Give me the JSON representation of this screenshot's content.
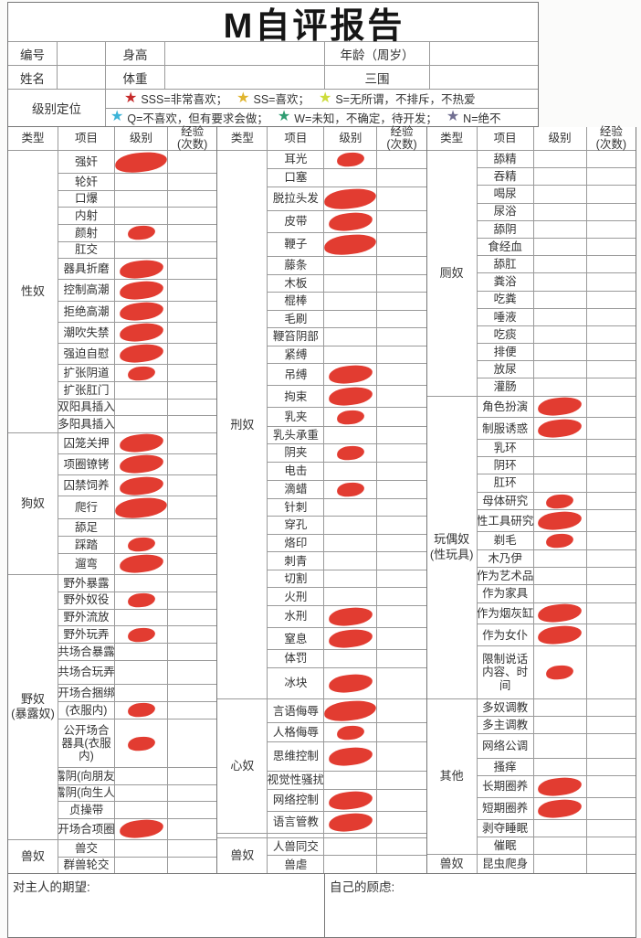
{
  "title": "M自评报告",
  "header": {
    "info_rows": [
      [
        "编号",
        "",
        "身高",
        "",
        "年龄（周岁）",
        ""
      ],
      [
        "姓名",
        "",
        "体重",
        "",
        "三围",
        ""
      ]
    ],
    "level_label": "级别定位",
    "legend_rows": [
      [
        {
          "star": "#c62b2b",
          "label": "SSS=非常喜欢；"
        },
        {
          "star": "#e0b52f",
          "label": "SS=喜欢；"
        },
        {
          "star": "#cddc3c",
          "label": "S=无所谓，不排斥，不热爱"
        }
      ],
      [
        {
          "star": "#3cb4d8",
          "label": "Q=不喜欢，但有要求会做；"
        },
        {
          "star": "#2f9d72",
          "label": "W=未知，不确定，待开发；"
        },
        {
          "star": "#716f92",
          "label": "N=绝不"
        }
      ]
    ]
  },
  "table": {
    "col_headers": [
      "类型",
      "项目",
      "级别",
      "经验\n(次数)"
    ],
    "mark_color": "#e23c31",
    "groups": [
      {
        "blocks": [
          {
            "category": "性奴",
            "items": [
              {
                "n": "强奸",
                "m": "l"
              },
              {
                "n": "轮奸"
              },
              {
                "n": "口爆"
              },
              {
                "n": "内射"
              },
              {
                "n": "颜射",
                "m": "s"
              },
              {
                "n": "肛交"
              },
              {
                "n": "器具折磨",
                "m": "m"
              },
              {
                "n": "控制高潮",
                "m": "m"
              },
              {
                "n": "拒绝高潮",
                "m": "m"
              },
              {
                "n": "潮吹失禁",
                "m": "m"
              },
              {
                "n": "强迫自慰",
                "m": "m"
              },
              {
                "n": "扩张阴道",
                "m": "s"
              },
              {
                "n": "扩张肛门"
              },
              {
                "n": "双阳具插入"
              },
              {
                "n": "多阳具插入"
              }
            ]
          },
          {
            "category": "狗奴",
            "items": [
              {
                "n": "囚笼关押",
                "m": "m"
              },
              {
                "n": "项圈镣铐",
                "m": "m"
              },
              {
                "n": "囚禁饲养",
                "m": "m"
              },
              {
                "n": "爬行",
                "m": "l"
              },
              {
                "n": "舔足"
              },
              {
                "n": "踩踏",
                "m": "s"
              },
              {
                "n": "遛弯",
                "m": "m"
              }
            ]
          },
          {
            "category": "野奴\n(暴露奴)",
            "items": [
              {
                "n": "野外暴露"
              },
              {
                "n": "野外奴役",
                "m": "s"
              },
              {
                "n": "野外流放"
              },
              {
                "n": "野外玩弄",
                "m": "s"
              },
              {
                "n": "共场合暴露"
              },
              {
                "n": "共场合玩弄",
                "h": 3.5
              },
              {
                "n": "开场合捆绑"
              },
              {
                "n": "(衣服内)",
                "m": "s"
              },
              {
                "n": "公开场合器具(衣服内)",
                "m": "s",
                "h": 3,
                "wrap": true
              },
              {
                "n": "露阴(向朋友)"
              },
              {
                "n": "露阴(向生人)"
              },
              {
                "n": "贞操带"
              },
              {
                "n": "开场合项圈",
                "m": "m"
              }
            ]
          },
          {
            "category": "兽奴",
            "items": [
              {
                "n": "兽交"
              },
              {
                "n": "群兽轮交"
              }
            ]
          }
        ]
      },
      {
        "blocks": [
          {
            "category": "刑奴",
            "items": [
              {
                "n": "耳光",
                "m": "s"
              },
              {
                "n": "口塞"
              },
              {
                "n": "脱拉头发",
                "m": "l"
              },
              {
                "n": "皮带",
                "m": "m"
              },
              {
                "n": "鞭子",
                "m": "l"
              },
              {
                "n": "藤条"
              },
              {
                "n": "木板"
              },
              {
                "n": "棍棒"
              },
              {
                "n": "毛刷"
              },
              {
                "n": "鞭笞阴部"
              },
              {
                "n": "紧缚"
              },
              {
                "n": "吊缚",
                "m": "m"
              },
              {
                "n": "拘束",
                "m": "m"
              },
              {
                "n": "乳夹",
                "m": "s"
              },
              {
                "n": "乳头承重"
              },
              {
                "n": "阴夹",
                "m": "s"
              },
              {
                "n": "电击"
              },
              {
                "n": "滴蜡",
                "m": "s"
              },
              {
                "n": "针刺"
              },
              {
                "n": "穿孔"
              },
              {
                "n": "烙印"
              },
              {
                "n": "刺青"
              },
              {
                "n": "切割"
              },
              {
                "n": "火刑"
              },
              {
                "n": "水刑",
                "m": "m"
              },
              {
                "n": "窒息",
                "m": "m"
              },
              {
                "n": "体罚"
              },
              {
                "n": "冰块",
                "m": "m",
                "h": 3.5
              }
            ]
          },
          {
            "category": "心奴",
            "items": [
              {
                "n": "言语侮辱",
                "m": "l"
              },
              {
                "n": "人格侮辱",
                "m": "s"
              },
              {
                "n": "思维控制",
                "m": "m",
                "h": 3
              },
              {
                "n": "视觉性骚扰"
              },
              {
                "n": "网络控制",
                "m": "m"
              },
              {
                "n": "语言管教",
                "m": "m"
              }
            ]
          },
          {
            "category": "",
            "items": [
              {
                "n": ""
              }
            ]
          },
          {
            "category": "兽奴",
            "items": [
              {
                "n": "人兽同交"
              },
              {
                "n": "兽虐"
              }
            ]
          }
        ]
      },
      {
        "blocks": [
          {
            "category": "厕奴",
            "items": [
              {
                "n": "舔精"
              },
              {
                "n": "吞精"
              },
              {
                "n": "喝尿"
              },
              {
                "n": "尿浴"
              },
              {
                "n": "舔阴"
              },
              {
                "n": "食经血"
              },
              {
                "n": "舔肛"
              },
              {
                "n": "粪浴"
              },
              {
                "n": "吃粪"
              },
              {
                "n": "唾液"
              },
              {
                "n": "吃痰"
              },
              {
                "n": "排便"
              },
              {
                "n": "放尿"
              },
              {
                "n": "灌肠"
              }
            ]
          },
          {
            "category": "玩偶奴\n(性玩具)",
            "items": [
              {
                "n": "角色扮演",
                "m": "m"
              },
              {
                "n": "制服诱惑",
                "m": "m"
              },
              {
                "n": "乳环"
              },
              {
                "n": "阴环"
              },
              {
                "n": "肛环"
              },
              {
                "n": "母体研究",
                "m": "s"
              },
              {
                "n": "性工具研究",
                "m": "m"
              },
              {
                "n": "剃毛",
                "m": "s"
              },
              {
                "n": "木乃伊"
              },
              {
                "n": "作为艺术品"
              },
              {
                "n": "作为家具"
              },
              {
                "n": "作为烟灰缸",
                "m": "m"
              },
              {
                "n": "作为女仆",
                "m": "m"
              },
              {
                "n": "限制说话内容、时间",
                "m": "s",
                "h": 3.5,
                "wrap": true
              }
            ]
          },
          {
            "category": "其他",
            "items": [
              {
                "n": "多奴调教"
              },
              {
                "n": "多主调教"
              },
              {
                "n": "网络公调",
                "h": 3
              },
              {
                "n": "搔痒"
              },
              {
                "n": "长期圈养",
                "m": "m"
              },
              {
                "n": "短期圈养",
                "m": "m"
              },
              {
                "n": "剥夺睡眠"
              },
              {
                "n": "催眠"
              }
            ]
          },
          {
            "category": "兽奴",
            "items": [
              {
                "n": "昆虫爬身"
              }
            ]
          }
        ]
      }
    ]
  },
  "footer": {
    "left_label": "对主人的期望:",
    "right_label": "自己的顾虑:"
  }
}
